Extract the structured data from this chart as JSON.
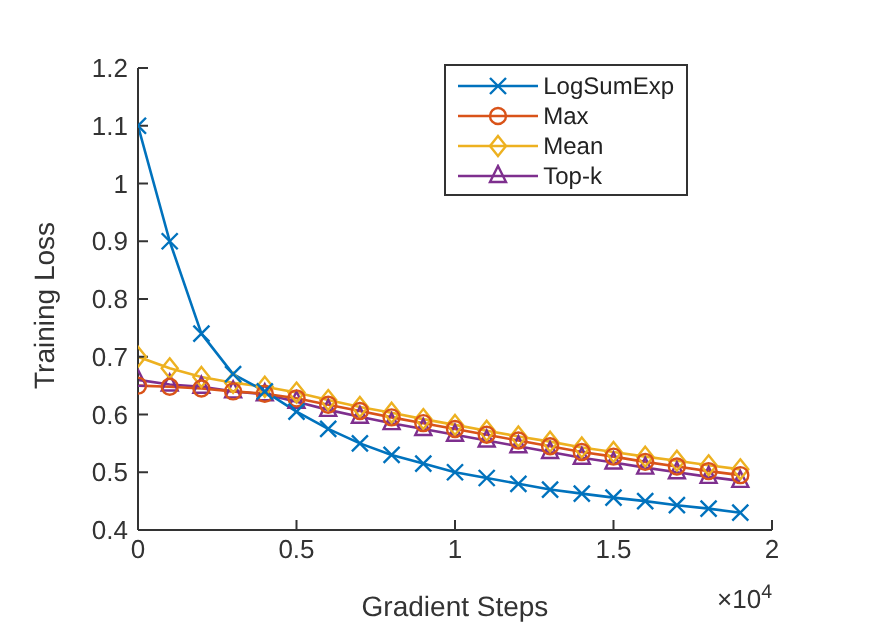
{
  "chart_data": {
    "type": "line",
    "xlabel": "Gradient Steps",
    "ylabel": "Training Loss",
    "x": [
      0,
      0.1,
      0.2,
      0.3,
      0.4,
      0.5,
      0.6,
      0.7,
      0.8,
      0.9,
      1.0,
      1.1,
      1.2,
      1.3,
      1.4,
      1.5,
      1.6,
      1.7,
      1.8,
      1.9
    ],
    "series": [
      {
        "name": "LogSumExp",
        "color": "#0072bd",
        "marker": "cross",
        "values": [
          1.1,
          0.9,
          0.74,
          0.67,
          0.64,
          0.605,
          0.575,
          0.55,
          0.53,
          0.515,
          0.5,
          0.49,
          0.48,
          0.47,
          0.463,
          0.456,
          0.45,
          0.443,
          0.437,
          0.43
        ]
      },
      {
        "name": "Max",
        "color": "#d95319",
        "marker": "circle",
        "values": [
          0.65,
          0.648,
          0.645,
          0.64,
          0.636,
          0.628,
          0.617,
          0.606,
          0.595,
          0.585,
          0.575,
          0.565,
          0.555,
          0.545,
          0.535,
          0.527,
          0.518,
          0.51,
          0.502,
          0.495
        ]
      },
      {
        "name": "Mean",
        "color": "#edb120",
        "marker": "diamond",
        "values": [
          0.7,
          0.68,
          0.665,
          0.655,
          0.648,
          0.638,
          0.625,
          0.613,
          0.603,
          0.592,
          0.582,
          0.572,
          0.562,
          0.553,
          0.543,
          0.535,
          0.527,
          0.52,
          0.512,
          0.505
        ]
      },
      {
        "name": "Top-k",
        "color": "#7e2f8e",
        "marker": "triangle",
        "values": [
          0.66,
          0.652,
          0.648,
          0.64,
          0.635,
          0.622,
          0.608,
          0.596,
          0.585,
          0.575,
          0.565,
          0.555,
          0.545,
          0.535,
          0.525,
          0.517,
          0.508,
          0.5,
          0.492,
          0.485
        ]
      }
    ],
    "xlim": [
      0,
      2
    ],
    "xticks": [
      0,
      0.5,
      1,
      1.5,
      2
    ],
    "ylim": [
      0.4,
      1.2
    ],
    "yticks": [
      0.4,
      0.5,
      0.6,
      0.7,
      0.8,
      0.9,
      1,
      1.1,
      1.2
    ],
    "grid": false,
    "legend": "top right",
    "line_style": "solid",
    "annotations": [
      "×10$^{4}$"
    ]
  }
}
